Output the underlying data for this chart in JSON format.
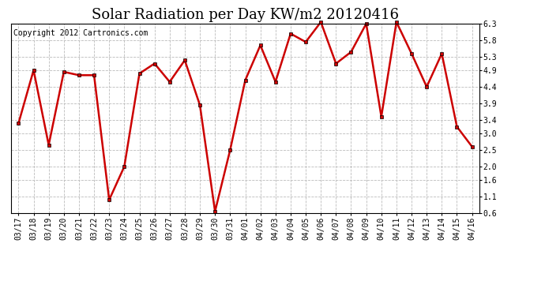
{
  "title": "Solar Radiation per Day KW/m2 20120416",
  "copyright": "Copyright 2012 Cartronics.com",
  "dates": [
    "03/17",
    "03/18",
    "03/19",
    "03/20",
    "03/21",
    "03/22",
    "03/23",
    "03/24",
    "03/25",
    "03/26",
    "03/27",
    "03/28",
    "03/29",
    "03/30",
    "03/31",
    "04/01",
    "04/02",
    "04/03",
    "04/04",
    "04/05",
    "04/06",
    "04/07",
    "04/08",
    "04/09",
    "04/10",
    "04/11",
    "04/12",
    "04/13",
    "04/14",
    "04/15",
    "04/16"
  ],
  "values": [
    3.3,
    4.9,
    2.65,
    4.85,
    4.75,
    4.75,
    1.0,
    2.0,
    4.8,
    5.1,
    4.55,
    5.2,
    3.85,
    0.65,
    2.5,
    4.6,
    5.65,
    4.55,
    6.0,
    5.75,
    6.35,
    5.1,
    5.45,
    6.3,
    3.5,
    6.35,
    5.4,
    4.4,
    5.4,
    3.2,
    2.6
  ],
  "line_color": "#cc0000",
  "marker": "s",
  "marker_size": 3,
  "marker_color": "#cc0000",
  "bg_color": "#ffffff",
  "grid_color": "#bbbbbb",
  "ylim": [
    0.6,
    6.3
  ],
  "yticks": [
    0.6,
    1.1,
    1.6,
    2.0,
    2.5,
    3.0,
    3.4,
    3.9,
    4.4,
    4.9,
    5.3,
    5.8,
    6.3
  ],
  "title_fontsize": 13,
  "copyright_fontsize": 7,
  "tick_fontsize": 7,
  "line_width": 1.8,
  "fig_width": 6.9,
  "fig_height": 3.75,
  "dpi": 100
}
